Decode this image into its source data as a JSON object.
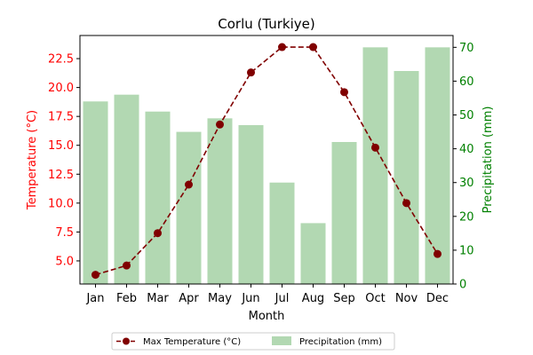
{
  "chart_data": {
    "type": "bar+line",
    "title": "Corlu (Turkiye)",
    "xlabel": "Month",
    "categories": [
      "Jan",
      "Feb",
      "Mar",
      "Apr",
      "May",
      "Jun",
      "Jul",
      "Aug",
      "Sep",
      "Oct",
      "Nov",
      "Dec"
    ],
    "left_axis": {
      "label": "Temperature (°C)",
      "color": "#ff0000",
      "ticks": [
        "5.0",
        "7.5",
        "10.0",
        "12.5",
        "15.0",
        "17.5",
        "20.0",
        "22.5"
      ],
      "ylim": [
        3.0,
        24.5
      ]
    },
    "right_axis": {
      "label": "Precipitation (mm)",
      "color": "#008000",
      "ticks": [
        "0",
        "10",
        "20",
        "30",
        "40",
        "50",
        "60",
        "70"
      ],
      "ylim": [
        0,
        73.5
      ]
    },
    "series": [
      {
        "name": "Max Temperature (°C)",
        "kind": "line",
        "axis": "left",
        "color": "#800000",
        "line_style": "dashed",
        "values": [
          3.8,
          4.6,
          7.4,
          11.6,
          16.8,
          21.3,
          23.5,
          23.5,
          19.6,
          14.8,
          10.0,
          5.6
        ]
      },
      {
        "name": "Precipitation (mm)",
        "kind": "bar",
        "axis": "right",
        "color": "#b2d8b2",
        "values": [
          54,
          56,
          51,
          45,
          49,
          47,
          30,
          18,
          42,
          70,
          63,
          70
        ]
      }
    ],
    "legend": {
      "placement": "bottom-center",
      "entries": [
        "Max Temperature (°C)",
        "Precipitation (mm)"
      ]
    }
  }
}
